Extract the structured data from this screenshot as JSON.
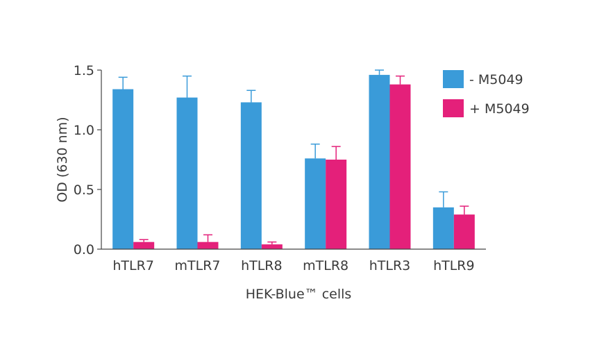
{
  "chart_data": {
    "type": "bar",
    "categories": [
      "hTLR7",
      "mTLR7",
      "hTLR8",
      "mTLR8",
      "hTLR3",
      "hTLR9"
    ],
    "series": [
      {
        "name": "- M5049",
        "color": "#3a9bd9",
        "values": [
          1.34,
          1.27,
          1.23,
          0.76,
          1.46,
          0.35
        ],
        "errors": [
          0.1,
          0.18,
          0.1,
          0.12,
          0.04,
          0.13
        ]
      },
      {
        "name": "+ M5049",
        "color": "#e4207a",
        "values": [
          0.06,
          0.06,
          0.04,
          0.75,
          1.38,
          0.29
        ],
        "errors": [
          0.02,
          0.06,
          0.02,
          0.11,
          0.07,
          0.07
        ]
      }
    ],
    "y_ticks": [
      "0.0",
      "0.5",
      "1.0",
      "1.5"
    ],
    "ylim": [
      0,
      1.5
    ],
    "ylabel": "OD (630 nm)",
    "xlabel": "HEK-Blue™ cells",
    "legend_position": "top-right",
    "grid": false
  }
}
